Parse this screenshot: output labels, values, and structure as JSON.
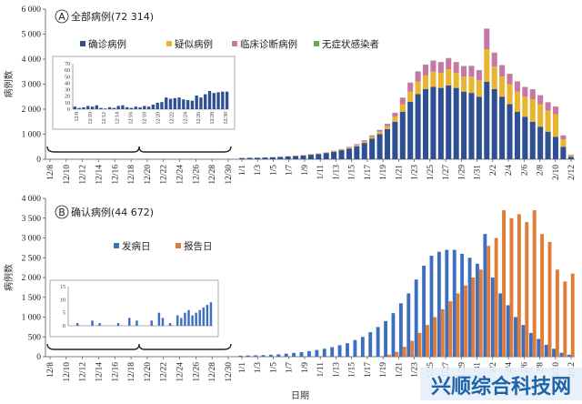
{
  "colors": {
    "blue": "#2f4f93",
    "yellow": "#e7b52f",
    "pink": "#c677a6",
    "green": "#6aa84f",
    "onset": "#3d6fc0",
    "report": "#e07c35",
    "axis": "#555555"
  },
  "chart_data": [
    {
      "type": "bar",
      "stacked": true,
      "panel_label": "A",
      "title": "全部病例(72 314)",
      "ylabel": "病例数",
      "ylim": [
        0,
        6000
      ],
      "yticks": [
        "0",
        "1 000",
        "2 000",
        "3 000",
        "4 000",
        "5 000",
        "6 000"
      ],
      "ytick_values": [
        0,
        1000,
        2000,
        3000,
        4000,
        5000,
        6000
      ],
      "x_ticks_dec": [
        "12/8",
        "12/10",
        "12/12",
        "12/14",
        "12/16",
        "12/18",
        "12/20",
        "12/22",
        "12/24",
        "12/26",
        "12/28",
        "12/30"
      ],
      "x_ticks_jan": [
        "1/1",
        "1/3",
        "1/5",
        "1/7",
        "1/9",
        "1/11",
        "1/13",
        "1/15",
        "1/17",
        "1/19",
        "1/21",
        "1/23",
        "1/25",
        "1/27",
        "1/29",
        "1/31",
        "2/2",
        "2/4",
        "2/6",
        "2/8",
        "2/10",
        "2/12"
      ],
      "legend": [
        "确诊病例",
        "疑似病例",
        "临床诊断病例",
        "无症状感染者"
      ],
      "legend_placement": "top",
      "series": [
        {
          "name": "确诊病例",
          "values": [
            50,
            55,
            60,
            70,
            80,
            90,
            110,
            130,
            150,
            180,
            210,
            250,
            300,
            360,
            430,
            520,
            650,
            820,
            1000,
            1200,
            1500,
            1900,
            2300,
            2600,
            2800,
            2900,
            2850,
            2950,
            2850,
            2700,
            2650,
            2500,
            3100,
            2800,
            2500,
            2200,
            1900,
            1700,
            1500,
            1300,
            1100,
            900,
            500,
            100
          ]
        },
        {
          "name": "疑似病例",
          "values": [
            5,
            5,
            5,
            5,
            5,
            5,
            10,
            10,
            10,
            15,
            15,
            20,
            25,
            30,
            40,
            50,
            60,
            80,
            100,
            120,
            200,
            300,
            400,
            500,
            550,
            600,
            600,
            650,
            600,
            600,
            650,
            650,
            1300,
            900,
            800,
            800,
            800,
            800,
            900,
            900,
            850,
            900,
            300,
            50
          ]
        },
        {
          "name": "临床诊断病例",
          "values": [
            0,
            0,
            0,
            0,
            0,
            5,
            5,
            5,
            5,
            10,
            10,
            10,
            15,
            20,
            25,
            30,
            40,
            50,
            70,
            90,
            150,
            250,
            350,
            400,
            420,
            430,
            420,
            430,
            420,
            410,
            420,
            400,
            800,
            550,
            450,
            400,
            400,
            380,
            380,
            350,
            320,
            300,
            150,
            30
          ]
        },
        {
          "name": "无症状感染者",
          "values": [
            0,
            0,
            0,
            0,
            0,
            0,
            0,
            0,
            0,
            0,
            0,
            0,
            0,
            0,
            0,
            5,
            5,
            5,
            5,
            10,
            10,
            15,
            15,
            15,
            15,
            15,
            15,
            15,
            15,
            15,
            15,
            15,
            20,
            15,
            15,
            15,
            15,
            15,
            15,
            10,
            10,
            10,
            5,
            0
          ]
        }
      ],
      "inset": {
        "yticks": [
          "0",
          "10",
          "20",
          "30",
          "40",
          "50",
          "60",
          "70"
        ],
        "ylim": [
          0,
          70
        ],
        "x_ticks": [
          "12/8",
          "12/10",
          "12/12",
          "12/14",
          "12/16",
          "12/18",
          "12/20",
          "12/22",
          "12/24",
          "12/26",
          "12/28",
          "12/30"
        ],
        "values": [
          4,
          2,
          3,
          5,
          4,
          6,
          2,
          1,
          3,
          2,
          5,
          6,
          3,
          2,
          4,
          3,
          5,
          4,
          7,
          10,
          11,
          18,
          16,
          17,
          18,
          15,
          14,
          13,
          21,
          18,
          23,
          28,
          25,
          26,
          27,
          27
        ]
      }
    },
    {
      "type": "bar",
      "panel_label": "B",
      "title": "确认病例(44 672)",
      "ylabel": "病例数",
      "xlabel": "日期",
      "ylim": [
        0,
        4000
      ],
      "yticks": [
        "0",
        "500",
        "1 000",
        "1 500",
        "2 000",
        "2 500",
        "3 000",
        "3 500",
        "4 000"
      ],
      "ytick_values": [
        0,
        500,
        1000,
        1500,
        2000,
        2500,
        3000,
        3500,
        4000
      ],
      "x_ticks_dec": [
        "12/8",
        "12/10",
        "12/12",
        "12/14",
        "12/16",
        "12/18",
        "12/20",
        "12/22",
        "12/24",
        "12/26",
        "12/28",
        "12/30"
      ],
      "x_ticks_jan": [
        "1/1",
        "1/3",
        "1/5",
        "1/7",
        "1/9",
        "1/11",
        "1/13",
        "1/15",
        "1/17",
        "1/19",
        "1/21",
        "1/23",
        "1/25",
        "1/27",
        "1/29",
        "1/31",
        "2/2",
        "2/4",
        "2/6",
        "2/8",
        "2/10",
        "2/12"
      ],
      "legend": [
        "发病日",
        "报告日"
      ],
      "legend_placement": "top",
      "series": [
        {
          "name": "发病日",
          "values": [
            25,
            30,
            35,
            40,
            50,
            60,
            75,
            95,
            115,
            140,
            170,
            200,
            240,
            290,
            340,
            420,
            500,
            620,
            750,
            900,
            1100,
            1350,
            1600,
            1950,
            2300,
            2550,
            2650,
            2700,
            2700,
            2600,
            2500,
            2350,
            3100,
            2000,
            1600,
            1300,
            1000,
            800,
            600,
            450,
            300,
            200,
            100,
            50
          ]
        },
        {
          "name": "报告日",
          "values": [
            0,
            0,
            0,
            0,
            0,
            0,
            0,
            0,
            0,
            0,
            0,
            0,
            0,
            0,
            0,
            0,
            0,
            0,
            0,
            50,
            120,
            250,
            400,
            600,
            800,
            1000,
            1200,
            1400,
            1600,
            1800,
            2000,
            2200,
            2800,
            3000,
            3700,
            3500,
            3600,
            3400,
            3700,
            3100,
            2900,
            2200,
            1900,
            2100
          ]
        }
      ],
      "inset": {
        "yticks": [
          "0",
          "5",
          "10",
          "15"
        ],
        "ylim": [
          0,
          15
        ],
        "values": [
          0,
          0,
          1,
          0,
          0,
          0,
          2,
          0,
          1,
          0,
          0,
          0,
          0,
          1,
          0,
          0,
          3,
          0,
          2,
          0,
          0,
          0,
          2,
          0,
          5,
          3,
          0,
          1,
          0,
          4,
          3,
          5,
          6,
          4,
          5,
          6,
          7,
          8,
          9
        ]
      }
    }
  ],
  "watermark": "兴顺综合科技网"
}
